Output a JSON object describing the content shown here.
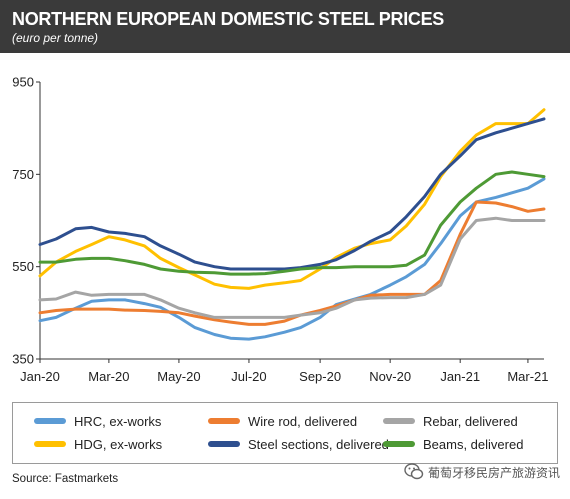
{
  "header": {
    "title": "NORTHERN EUROPEAN DOMESTIC STEEL PRICES",
    "subtitle": "(euro per tonne)"
  },
  "source": "Source: Fastmarkets",
  "watermark": "葡萄牙移民房产旅游资讯",
  "colors": {
    "header_bg": "#3a3a3a",
    "HRC, ex-works": "#5b9bd5",
    "Wire rod, delivered": "#ed7d31",
    "Rebar, delivered": "#a5a5a5",
    "HDG, ex-works": "#ffc000",
    "Steel sections, delivered": "#2e4f8f",
    "Beams, delivered": "#4e9a35"
  },
  "chart_data": {
    "type": "line",
    "ylim": [
      350,
      950
    ],
    "yticks": [
      "350",
      "550",
      "750",
      "950"
    ],
    "xtick_labels": [
      "Jan-20",
      "Mar-20",
      "May-20",
      "Jul-20",
      "Sep-20",
      "Nov-20",
      "Jan-21",
      "Mar-21"
    ],
    "grid": false,
    "legend_position": "bottom",
    "x": [
      "2020-01-01",
      "2020-01-15",
      "2020-02-01",
      "2020-02-15",
      "2020-03-01",
      "2020-03-15",
      "2020-04-01",
      "2020-04-15",
      "2020-05-01",
      "2020-05-15",
      "2020-06-01",
      "2020-06-15",
      "2020-07-01",
      "2020-07-15",
      "2020-08-01",
      "2020-08-15",
      "2020-09-01",
      "2020-09-15",
      "2020-10-01",
      "2020-10-15",
      "2020-11-01",
      "2020-11-15",
      "2020-12-01",
      "2020-12-15",
      "2021-01-01",
      "2021-01-15",
      "2021-02-01",
      "2021-02-15",
      "2021-03-01",
      "2021-03-15"
    ],
    "series": [
      {
        "name": "HRC, ex-works",
        "values": [
          433,
          440,
          460,
          475,
          478,
          478,
          470,
          462,
          440,
          418,
          403,
          395,
          393,
          398,
          408,
          418,
          440,
          468,
          480,
          490,
          510,
          528,
          555,
          600,
          660,
          690,
          700,
          710,
          720,
          740
        ]
      },
      {
        "name": "Wire rod, delivered",
        "values": [
          450,
          455,
          458,
          458,
          458,
          456,
          455,
          453,
          450,
          443,
          435,
          430,
          425,
          425,
          432,
          445,
          455,
          465,
          478,
          488,
          490,
          490,
          490,
          520,
          620,
          690,
          688,
          680,
          670,
          675
        ]
      },
      {
        "name": "Rebar, delivered",
        "values": [
          478,
          480,
          495,
          488,
          490,
          490,
          490,
          478,
          460,
          450,
          440,
          440,
          440,
          440,
          440,
          445,
          450,
          460,
          478,
          482,
          483,
          483,
          490,
          510,
          610,
          650,
          655,
          650,
          650,
          650
        ]
      },
      {
        "name": "HDG, ex-works",
        "values": [
          530,
          560,
          583,
          598,
          615,
          608,
          595,
          568,
          548,
          532,
          512,
          505,
          503,
          510,
          515,
          520,
          545,
          570,
          590,
          600,
          608,
          638,
          685,
          745,
          800,
          835,
          860,
          860,
          860,
          890
        ]
      },
      {
        "name": "Steel sections, delivered",
        "values": [
          598,
          610,
          632,
          635,
          625,
          622,
          615,
          595,
          577,
          560,
          550,
          545,
          545,
          545,
          545,
          548,
          555,
          565,
          585,
          605,
          625,
          658,
          702,
          750,
          790,
          825,
          840,
          850,
          860,
          870
        ]
      },
      {
        "name": "Beams, delivered",
        "values": [
          560,
          560,
          566,
          568,
          568,
          563,
          555,
          545,
          540,
          538,
          537,
          534,
          534,
          535,
          540,
          545,
          548,
          548,
          550,
          550,
          550,
          553,
          575,
          640,
          690,
          720,
          750,
          755,
          750,
          745
        ]
      }
    ]
  }
}
